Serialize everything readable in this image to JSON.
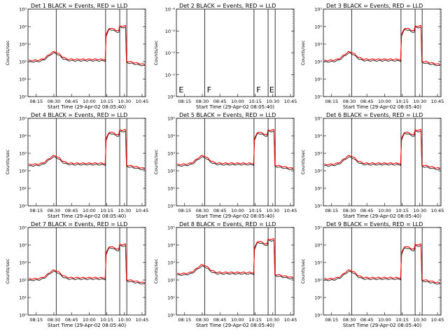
{
  "chart_data": [
    {
      "type": "line",
      "title": "Det 1",
      "title_suffix": " BLACK = Events, RED = LLD",
      "xlabel": "Start Time (29-Apr-02 08:05:40)",
      "ylabel": "Counts/sec",
      "xticks": [
        "08:15",
        "08:30",
        "08:45",
        "10:00",
        "10:15",
        "10:30",
        "10:45"
      ],
      "yscale": "log",
      "yticks": [
        "10⁰",
        "10¹",
        "10²",
        "10³",
        "10⁴",
        "10⁵"
      ],
      "ylim": [
        1,
        100000
      ],
      "marks": [],
      "series": [
        {
          "name": "Events",
          "color": "#000000",
          "baseline": "low"
        },
        {
          "name": "LLD",
          "color": "#ff0000",
          "baseline": "low"
        }
      ]
    },
    {
      "type": "line",
      "title": "Det 2",
      "title_suffix": " BLACK = Events, RED = LLD",
      "xlabel": "Start Time (29-Apr-02 08:05:40)",
      "ylabel": "Counts/sec",
      "xticks": [
        "08:15",
        "08:30",
        "08:45",
        "10:00",
        "10:15",
        "10:30",
        "10:45"
      ],
      "yscale": "log",
      "yticks": [
        "10⁰",
        "10⁻²",
        "10⁻⁴",
        "10⁻⁶",
        "10⁻⁸"
      ],
      "ylim": [
        1e-08,
        1
      ],
      "marks": [
        "E",
        "F",
        "F",
        "E"
      ],
      "series": []
    },
    {
      "type": "line",
      "title": "Det 3",
      "title_suffix": " BLACK = Events, RED = LLD",
      "xlabel": "Start Time (29-Apr-02 08:05:40)",
      "ylabel": "Counts/sec",
      "xticks": [
        "08:15",
        "08:30",
        "08:45",
        "10:00",
        "10:15",
        "10:30",
        "10:45"
      ],
      "yscale": "log",
      "yticks": [
        "10⁰",
        "10¹",
        "10²",
        "10³",
        "10⁴",
        "10⁵"
      ],
      "ylim": [
        1,
        100000
      ],
      "marks": [],
      "series": [
        {
          "name": "Events",
          "color": "#000000",
          "baseline": "low"
        },
        {
          "name": "LLD",
          "color": "#ff0000",
          "baseline": "low"
        }
      ]
    },
    {
      "type": "line",
      "title": "Det 4",
      "title_suffix": " BLACK = Events, RED = LLD",
      "xlabel": "Start Time (29-Apr-02 08:05:40)",
      "ylabel": "Counts/sec",
      "xticks": [
        "08:15",
        "08:30",
        "08:45",
        "10:00",
        "10:15",
        "10:30",
        "10:45"
      ],
      "yscale": "log",
      "yticks": [
        "10⁰",
        "10¹",
        "10²",
        "10³",
        "10⁴",
        "10⁵"
      ],
      "ylim": [
        1,
        100000
      ],
      "marks": [],
      "series": [
        {
          "name": "Events",
          "color": "#000000",
          "baseline": "high"
        },
        {
          "name": "LLD",
          "color": "#ff0000",
          "baseline": "high"
        }
      ]
    },
    {
      "type": "line",
      "title": "Det 5",
      "title_suffix": " BLACK = Events, RED = LLD",
      "xlabel": "Start Time (29-Apr-02 08:05:40)",
      "ylabel": "Counts/sec",
      "xticks": [
        "08:15",
        "08:30",
        "08:45",
        "10:00",
        "10:15",
        "10:30",
        "10:45"
      ],
      "yscale": "log",
      "yticks": [
        "10⁰",
        "10¹",
        "10²",
        "10³",
        "10⁴",
        "10⁵"
      ],
      "ylim": [
        1,
        100000
      ],
      "marks": [],
      "series": [
        {
          "name": "Events",
          "color": "#000000",
          "baseline": "high"
        },
        {
          "name": "LLD",
          "color": "#ff0000",
          "baseline": "high"
        }
      ]
    },
    {
      "type": "line",
      "title": "Det 6",
      "title_suffix": " BLACK = Events, RED = LLD",
      "xlabel": "Start Time (29-Apr-02 08:05:40)",
      "ylabel": "Counts/sec",
      "xticks": [
        "08:15",
        "08:30",
        "08:45",
        "10:00",
        "10:15",
        "10:30",
        "10:45"
      ],
      "yscale": "log",
      "yticks": [
        "10⁰",
        "10¹",
        "10²",
        "10³",
        "10⁴",
        "10⁵"
      ],
      "ylim": [
        1,
        100000
      ],
      "marks": [],
      "series": [
        {
          "name": "Events",
          "color": "#000000",
          "baseline": "high"
        },
        {
          "name": "LLD",
          "color": "#ff0000",
          "baseline": "high"
        }
      ]
    },
    {
      "type": "line",
      "title": "Det 7",
      "title_suffix": " BLACK = Events, RED = LLD",
      "xlabel": "Start Time (29-Apr-02 08:05:40)",
      "ylabel": "Counts/sec",
      "xticks": [
        "08:15",
        "08:30",
        "08:45",
        "10:00",
        "10:15",
        "10:30",
        "10:45"
      ],
      "yscale": "log",
      "yticks": [
        "10⁰",
        "10¹",
        "10²",
        "10³",
        "10⁴",
        "10⁵"
      ],
      "ylim": [
        1,
        100000
      ],
      "marks": [],
      "series": [
        {
          "name": "Events",
          "color": "#000000",
          "baseline": "low"
        },
        {
          "name": "LLD",
          "color": "#ff0000",
          "baseline": "low"
        }
      ]
    },
    {
      "type": "line",
      "title": "Det 8",
      "title_suffix": " BLACK = Events, RED = LLD",
      "xlabel": "Start Time (29-Apr-02 08:05:40)",
      "ylabel": "Counts/sec",
      "xticks": [
        "08:15",
        "08:30",
        "08:45",
        "10:00",
        "10:15",
        "10:30",
        "10:45"
      ],
      "yscale": "log",
      "yticks": [
        "10⁰",
        "10¹",
        "10²",
        "10³",
        "10⁴",
        "10⁵"
      ],
      "ylim": [
        1,
        100000
      ],
      "marks": [],
      "series": [
        {
          "name": "Events",
          "color": "#000000",
          "baseline": "high"
        },
        {
          "name": "LLD",
          "color": "#ff0000",
          "baseline": "high"
        }
      ]
    },
    {
      "type": "line",
      "title": "Det 9",
      "title_suffix": " BLACK = Events, RED = LLD",
      "xlabel": "Start Time (29-Apr-02 08:05:40)",
      "ylabel": "Counts/sec",
      "xticks": [
        "08:15",
        "08:30",
        "08:45",
        "10:00",
        "10:15",
        "10:30",
        "10:45"
      ],
      "yscale": "log",
      "yticks": [
        "10⁰",
        "10¹",
        "10²",
        "10³",
        "10⁴",
        "10⁵"
      ],
      "ylim": [
        1,
        100000
      ],
      "marks": [],
      "series": [
        {
          "name": "Events",
          "color": "#000000",
          "baseline": "low"
        },
        {
          "name": "LLD",
          "color": "#ff0000",
          "baseline": "low"
        }
      ]
    }
  ]
}
